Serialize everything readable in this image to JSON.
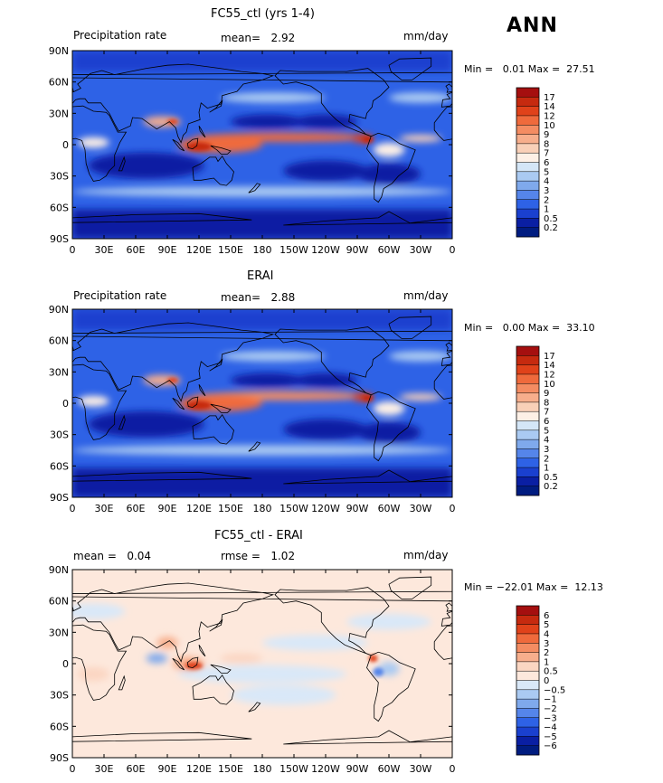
{
  "season_label": "ANN",
  "panels": [
    {
      "id": "model",
      "title": "FC55_ctl (yrs 1-4)",
      "left_label": "Precipitation rate",
      "stat1": "mean=   2.92",
      "stat2": "",
      "units": "mm/day",
      "minmax": "Min =   0.01 Max =  27.51",
      "colorbar": {
        "levels": [
          "17",
          "14",
          "12",
          "10",
          "9",
          "8",
          "7",
          "6",
          "5",
          "4",
          "3",
          "2",
          "1",
          "0.5",
          "0.2"
        ],
        "colors": [
          "#a50f0f",
          "#c62a0f",
          "#e0421a",
          "#ef6a3c",
          "#f48c62",
          "#f7ae8c",
          "#f9d0b8",
          "#fdf0e6",
          "#d4e6f7",
          "#aacaf2",
          "#7fa9ec",
          "#5585ea",
          "#2e62e6",
          "#1a40cf",
          "#0a1fa3",
          "#001c80"
        ]
      }
    },
    {
      "id": "obs",
      "title": "ERAI",
      "left_label": "Precipitation rate",
      "stat1": "mean=   2.88",
      "stat2": "",
      "units": "mm/day",
      "minmax": "Min =   0.00 Max =  33.10",
      "colorbar": {
        "levels": [
          "17",
          "14",
          "12",
          "10",
          "9",
          "8",
          "7",
          "6",
          "5",
          "4",
          "3",
          "2",
          "1",
          "0.5",
          "0.2"
        ],
        "colors": [
          "#a50f0f",
          "#c62a0f",
          "#e0421a",
          "#ef6a3c",
          "#f48c62",
          "#f7ae8c",
          "#f9d0b8",
          "#fdf0e6",
          "#d4e6f7",
          "#aacaf2",
          "#7fa9ec",
          "#5585ea",
          "#2e62e6",
          "#1a40cf",
          "#0a1fa3",
          "#001c80"
        ]
      }
    },
    {
      "id": "diff",
      "title": "FC55_ctl - ERAI",
      "left_label": "mean =   0.04",
      "stat1": "rmse =   1.02",
      "stat2": "",
      "units": "mm/day",
      "minmax": "Min = −22.01 Max =  12.13",
      "colorbar": {
        "levels": [
          "6",
          "5",
          "4",
          "3",
          "2",
          "1",
          "0.5",
          "0",
          "−0.5",
          "−1",
          "−2",
          "−3",
          "−4",
          "−5",
          "−6"
        ],
        "colors": [
          "#a50f0f",
          "#c62a0f",
          "#e0421a",
          "#ef6a3c",
          "#f48c62",
          "#f7ae8c",
          "#fbd6c2",
          "#fde8dc",
          "#d9e8f8",
          "#aacaf2",
          "#7fa9ec",
          "#5585ea",
          "#2e62e6",
          "#1a40cf",
          "#0a1fa3",
          "#001c80"
        ]
      }
    }
  ],
  "map_axes": {
    "lat_ticks": [
      "90N",
      "60N",
      "30N",
      "0",
      "30S",
      "60S",
      "90S"
    ],
    "lon_ticks": [
      "0",
      "30E",
      "60E",
      "90E",
      "120E",
      "150E",
      "180",
      "150W",
      "120W",
      "90W",
      "60W",
      "30W",
      "0"
    ]
  },
  "chart_data": {
    "type": "heatmap",
    "variable": "Precipitation rate",
    "units": "mm/day",
    "x_range": [
      0,
      360
    ],
    "y_range": [
      -90,
      90
    ],
    "panels": [
      {
        "title": "FC55_ctl (yrs 1-4)",
        "mean": 2.92,
        "min": 0.01,
        "max": 27.51
      },
      {
        "title": "ERAI",
        "mean": 2.88,
        "min": 0.0,
        "max": 33.1
      },
      {
        "title": "FC55_ctl - ERAI",
        "mean": 0.04,
        "rmse": 1.02,
        "min": -22.01,
        "max": 12.13
      }
    ]
  }
}
